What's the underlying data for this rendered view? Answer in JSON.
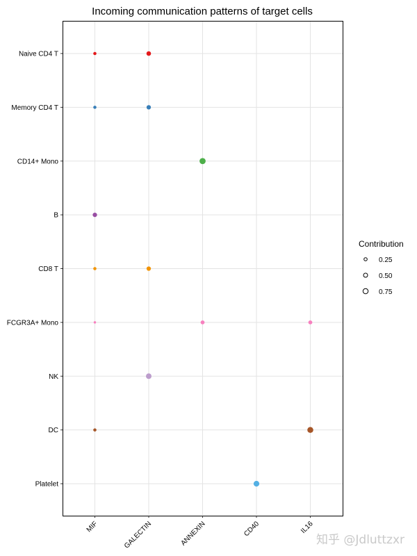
{
  "chart_data": {
    "type": "scatter",
    "title": "Incoming communication patterns of target cells",
    "xlabel": "",
    "ylabel": "",
    "x_categories": [
      "MIF",
      "GALECTIN",
      "ANNEXIN",
      "CD40",
      "IL16"
    ],
    "y_categories": [
      "Naive CD4 T",
      "Memory CD4 T",
      "CD14+ Mono",
      "B",
      "CD8 T",
      "FCGR3A+ Mono",
      "NK",
      "DC",
      "Platelet"
    ],
    "colors": {
      "Naive CD4 T": "#E41A1C",
      "Memory CD4 T": "#377EB8",
      "CD14+ Mono": "#4DAF4A",
      "B": "#984EA3",
      "CD8 T": "#F29403",
      "FCGR3A+ Mono": "#F781BF",
      "NK": "#BC9DCC",
      "DC": "#A65628",
      "Platelet": "#54B0E4"
    },
    "points": [
      {
        "cell": "Naive CD4 T",
        "pattern": "MIF",
        "contribution": 0.25
      },
      {
        "cell": "Naive CD4 T",
        "pattern": "GALECTIN",
        "contribution": 0.6
      },
      {
        "cell": "Memory CD4 T",
        "pattern": "MIF",
        "contribution": 0.25
      },
      {
        "cell": "Memory CD4 T",
        "pattern": "GALECTIN",
        "contribution": 0.55
      },
      {
        "cell": "CD14+ Mono",
        "pattern": "ANNEXIN",
        "contribution": 1.0
      },
      {
        "cell": "B",
        "pattern": "MIF",
        "contribution": 0.55
      },
      {
        "cell": "CD8 T",
        "pattern": "MIF",
        "contribution": 0.25
      },
      {
        "cell": "CD8 T",
        "pattern": "GALECTIN",
        "contribution": 0.55
      },
      {
        "cell": "FCGR3A+ Mono",
        "pattern": "MIF",
        "contribution": 0.05
      },
      {
        "cell": "FCGR3A+ Mono",
        "pattern": "ANNEXIN",
        "contribution": 0.45
      },
      {
        "cell": "FCGR3A+ Mono",
        "pattern": "IL16",
        "contribution": 0.45
      },
      {
        "cell": "NK",
        "pattern": "GALECTIN",
        "contribution": 0.85
      },
      {
        "cell": "DC",
        "pattern": "MIF",
        "contribution": 0.25
      },
      {
        "cell": "DC",
        "pattern": "IL16",
        "contribution": 0.95
      },
      {
        "cell": "Platelet",
        "pattern": "CD40",
        "contribution": 0.9
      }
    ],
    "legend": {
      "title": "Contribution",
      "values": [
        0.25,
        0.5,
        0.75
      ],
      "labels": [
        "0.25",
        "0.50",
        "0.75"
      ],
      "position": "right"
    },
    "grid": true
  },
  "watermark": "知乎 @Jdluttzxr"
}
